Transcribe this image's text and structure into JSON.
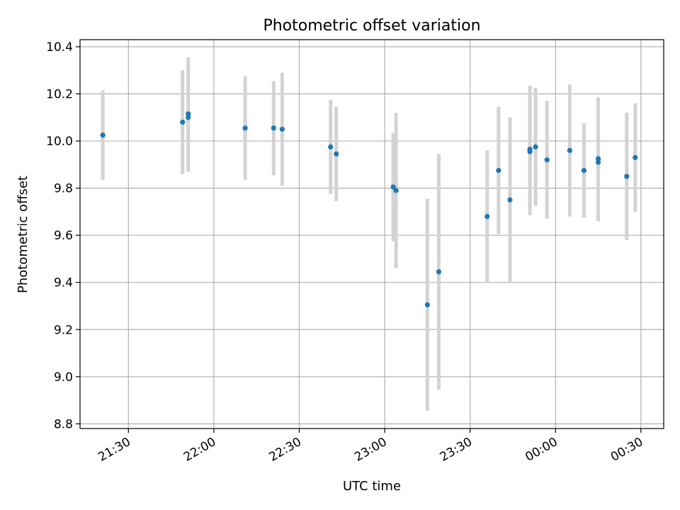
{
  "chart_data": {
    "type": "scatter",
    "title": "Photometric offset variation",
    "xlabel": "UTC time",
    "ylabel": "Photometric offset",
    "x_axis": "time",
    "ylim": [
      8.78,
      10.43
    ],
    "xlim": [
      "21:13",
      "00:38"
    ],
    "grid": true,
    "legend": "none",
    "colors": {
      "marker": "#1f77b4",
      "errorbar": "#d3d3d3",
      "grid": "#b0b0b0"
    },
    "x_ticks": [
      {
        "time": "21:30",
        "label": "21:30"
      },
      {
        "time": "22:00",
        "label": "22:00"
      },
      {
        "time": "22:30",
        "label": "22:30"
      },
      {
        "time": "23:00",
        "label": "23:00"
      },
      {
        "time": "23:30",
        "label": "23:30"
      },
      {
        "time": "00:00",
        "label": "00:00"
      },
      {
        "time": "00:30",
        "label": "00:30"
      }
    ],
    "y_ticks": [
      {
        "value": 8.8,
        "label": "8.8"
      },
      {
        "value": 9.0,
        "label": "9.0"
      },
      {
        "value": 9.2,
        "label": "9.2"
      },
      {
        "value": 9.4,
        "label": "9.4"
      },
      {
        "value": 9.6,
        "label": "9.6"
      },
      {
        "value": 9.8,
        "label": "9.8"
      },
      {
        "value": 10.0,
        "label": "10.0"
      },
      {
        "value": 10.2,
        "label": "10.2"
      },
      {
        "value": 10.4,
        "label": "10.4"
      }
    ],
    "points": [
      {
        "time": "21:21",
        "y": 10.025,
        "err": 0.19
      },
      {
        "time": "21:49",
        "y": 10.08,
        "err": 0.22
      },
      {
        "time": "21:51",
        "y": 10.115,
        "err": 0.24
      },
      {
        "time": "21:51",
        "y": 10.1,
        "err": 0.23
      },
      {
        "time": "22:11",
        "y": 10.055,
        "err": 0.22
      },
      {
        "time": "22:21",
        "y": 10.055,
        "err": 0.2
      },
      {
        "time": "22:24",
        "y": 10.05,
        "err": 0.24
      },
      {
        "time": "22:41",
        "y": 9.975,
        "err": 0.2
      },
      {
        "time": "22:43",
        "y": 9.945,
        "err": 0.2
      },
      {
        "time": "23:03",
        "y": 9.805,
        "err": 0.23
      },
      {
        "time": "23:04",
        "y": 9.79,
        "err": 0.33
      },
      {
        "time": "23:15",
        "y": 9.305,
        "err": 0.45
      },
      {
        "time": "23:19",
        "y": 9.445,
        "err": 0.5
      },
      {
        "time": "23:36",
        "y": 9.68,
        "err": 0.28
      },
      {
        "time": "23:40",
        "y": 9.875,
        "err": 0.27
      },
      {
        "time": "23:44",
        "y": 9.75,
        "err": 0.35
      },
      {
        "time": "23:51",
        "y": 9.955,
        "err": 0.27
      },
      {
        "time": "23:51",
        "y": 9.965,
        "err": 0.27
      },
      {
        "time": "23:53",
        "y": 9.975,
        "err": 0.25
      },
      {
        "time": "23:57",
        "y": 9.92,
        "err": 0.25
      },
      {
        "time": "00:05",
        "y": 9.96,
        "err": 0.28
      },
      {
        "time": "00:10",
        "y": 9.875,
        "err": 0.2
      },
      {
        "time": "00:15",
        "y": 9.925,
        "err": 0.26
      },
      {
        "time": "00:15",
        "y": 9.91,
        "err": 0.25
      },
      {
        "time": "00:25",
        "y": 9.85,
        "err": 0.27
      },
      {
        "time": "00:28",
        "y": 9.93,
        "err": 0.23
      }
    ]
  }
}
